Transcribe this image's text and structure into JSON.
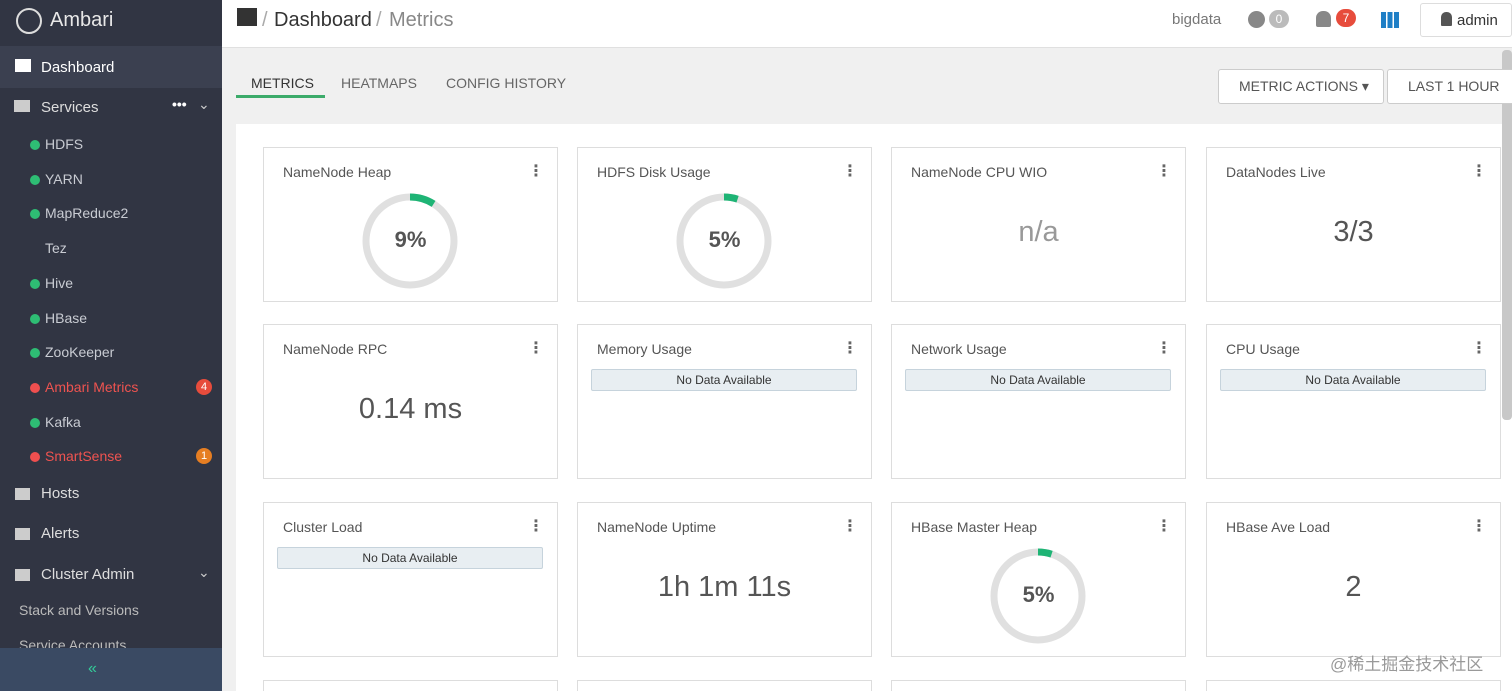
{
  "sidebar": {
    "brand": "Ambari",
    "dashboard": "Dashboard",
    "services_label": "Services",
    "services": [
      {
        "label": "HDFS",
        "status": "green"
      },
      {
        "label": "YARN",
        "status": "green"
      },
      {
        "label": "MapReduce2",
        "status": "green"
      },
      {
        "label": "Tez",
        "status": "none"
      },
      {
        "label": "Hive",
        "status": "green"
      },
      {
        "label": "HBase",
        "status": "green"
      },
      {
        "label": "ZooKeeper",
        "status": "green"
      },
      {
        "label": "Ambari Metrics",
        "status": "red",
        "badge": 4,
        "badge_color": "#e74c3c"
      },
      {
        "label": "Kafka",
        "status": "green"
      },
      {
        "label": "SmartSense",
        "status": "red",
        "badge": 1,
        "badge_color": "#e67e22"
      }
    ],
    "hosts": "Hosts",
    "alerts": "Alerts",
    "cluster_admin": "Cluster Admin",
    "cluster_admin_items": [
      "Stack and Versions",
      "Service Accounts"
    ]
  },
  "topbar": {
    "breadcrumb": [
      "Dashboard",
      "Metrics"
    ],
    "cluster": "bigdata",
    "ops_count": 0,
    "alerts_count": 7,
    "user": "admin"
  },
  "tabs": {
    "items": [
      "METRICS",
      "HEATMAPS",
      "CONFIG HISTORY"
    ],
    "active": 0
  },
  "buttons": [
    "METRIC ACTIONS",
    "LAST 1 HOUR"
  ],
  "widgets": [
    {
      "title": "NameNode Heap",
      "kind": "donut",
      "value": 9,
      "label": "9%"
    },
    {
      "title": "HDFS Disk Usage",
      "kind": "donut",
      "value": 5,
      "label": "5%"
    },
    {
      "title": "NameNode CPU WIO",
      "kind": "text",
      "label": "n/a"
    },
    {
      "title": "DataNodes Live",
      "kind": "text",
      "label": "3/3"
    },
    {
      "title": "NameNode RPC",
      "kind": "text",
      "label": "0.14 ms"
    },
    {
      "title": "Memory Usage",
      "kind": "nodata",
      "label": "No Data Available"
    },
    {
      "title": "Network Usage",
      "kind": "nodata",
      "label": "No Data Available"
    },
    {
      "title": "CPU Usage",
      "kind": "nodata",
      "label": "No Data Available"
    },
    {
      "title": "Cluster Load",
      "kind": "nodata",
      "label": "No Data Available"
    },
    {
      "title": "NameNode Uptime",
      "kind": "text",
      "label": "1h 1m 11s"
    },
    {
      "title": "HBase Master Heap",
      "kind": "donut",
      "value": 5,
      "label": "5%"
    },
    {
      "title": "HBase Ave Load",
      "kind": "text",
      "label": "2"
    }
  ],
  "watermark": "@稀土掘金技术社区"
}
